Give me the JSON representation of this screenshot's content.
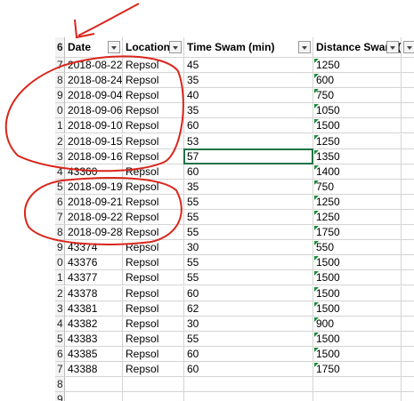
{
  "sheet": {
    "headers": [
      "Date",
      "Location",
      "Time Swam (min)",
      "Distance Swam (m)"
    ],
    "header_row_number": "6",
    "rows": [
      {
        "n": "7",
        "cells": [
          "2018-08-22",
          "Repsol",
          45,
          1250
        ]
      },
      {
        "n": "8",
        "cells": [
          "2018-08-24",
          "Repsol",
          35,
          600
        ]
      },
      {
        "n": "9",
        "cells": [
          "2018-09-04",
          "Repsol",
          40,
          750
        ]
      },
      {
        "n": "0",
        "cells": [
          "2018-09-06",
          "Repsol",
          35,
          1050
        ]
      },
      {
        "n": "1",
        "cells": [
          "2018-09-10",
          "Repsol",
          60,
          1500
        ]
      },
      {
        "n": "2",
        "cells": [
          "2018-09-15",
          "Repsol",
          53,
          1250
        ]
      },
      {
        "n": "3",
        "cells": [
          "2018-09-16",
          "Repsol",
          57,
          1350
        ]
      },
      {
        "n": "4",
        "cells": [
          43360,
          "Repsol",
          60,
          1400
        ]
      },
      {
        "n": "5",
        "cells": [
          "2018-09-19",
          "Repsol",
          35,
          750
        ]
      },
      {
        "n": "6",
        "cells": [
          "2018-09-21",
          "Repsol",
          55,
          1250
        ]
      },
      {
        "n": "7",
        "cells": [
          "2018-09-22",
          "Repsol",
          55,
          1250
        ]
      },
      {
        "n": "8",
        "cells": [
          "2018-09-28",
          "Repsol",
          55,
          1750
        ]
      },
      {
        "n": "9",
        "cells": [
          43374,
          "Repsol",
          30,
          550
        ]
      },
      {
        "n": "0",
        "cells": [
          43376,
          "Repsol",
          55,
          1500
        ]
      },
      {
        "n": "1",
        "cells": [
          43377,
          "Repsol",
          55,
          1500
        ]
      },
      {
        "n": "2",
        "cells": [
          43378,
          "Repsol",
          60,
          1500
        ]
      },
      {
        "n": "3",
        "cells": [
          43381,
          "Repsol",
          62,
          1500
        ]
      },
      {
        "n": "4",
        "cells": [
          43382,
          "Repsol",
          30,
          900
        ]
      },
      {
        "n": "5",
        "cells": [
          43383,
          "Repsol",
          55,
          1500
        ]
      },
      {
        "n": "6",
        "cells": [
          43385,
          "Repsol",
          60,
          1500
        ]
      },
      {
        "n": "7",
        "cells": [
          43388,
          "Repsol",
          60,
          1750
        ]
      }
    ],
    "empty_rows": [
      "8",
      "9"
    ]
  }
}
